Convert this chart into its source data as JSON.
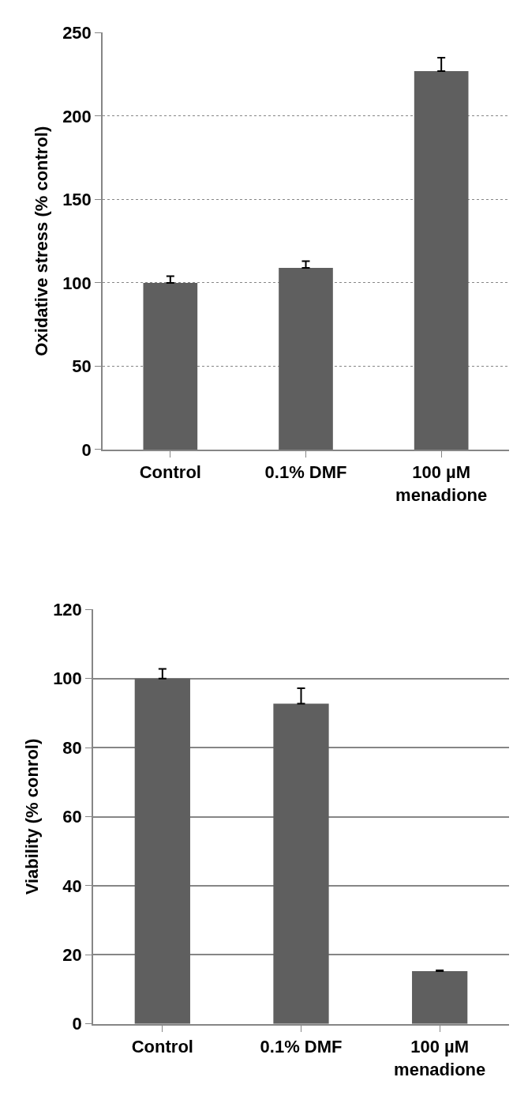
{
  "chart_data": [
    {
      "type": "bar",
      "categories": [
        "Control",
        "0.1% DMF",
        "100 µM menadione"
      ],
      "ylabel": "Oxidative stress (% control)",
      "series": [
        {
          "color": "#5f5f5f",
          "values": [
            100,
            109,
            227
          ],
          "errors": [
            [
              100,
              104
            ],
            [
              109,
              113
            ],
            [
              227,
              235
            ]
          ]
        }
      ],
      "ylim": [
        0,
        250
      ],
      "yticks": [
        0,
        50,
        100,
        150,
        200,
        250
      ],
      "grid": "y"
    },
    {
      "type": "bar",
      "categories": [
        "Control",
        "0.1% DMF",
        "100 µM menadione"
      ],
      "ylabel": "Viability (% conrol)",
      "series": [
        {
          "color": "#5f5f5f",
          "values": [
            100,
            92.7,
            15.3
          ],
          "errors": [
            [
              100,
              102.8
            ],
            [
              92.7,
              97.2
            ],
            [
              15.3,
              15.5
            ]
          ]
        }
      ],
      "ylim": [
        0,
        120
      ],
      "yticks": [
        0,
        20,
        40,
        60,
        80,
        100,
        120
      ],
      "grid": "y"
    }
  ]
}
